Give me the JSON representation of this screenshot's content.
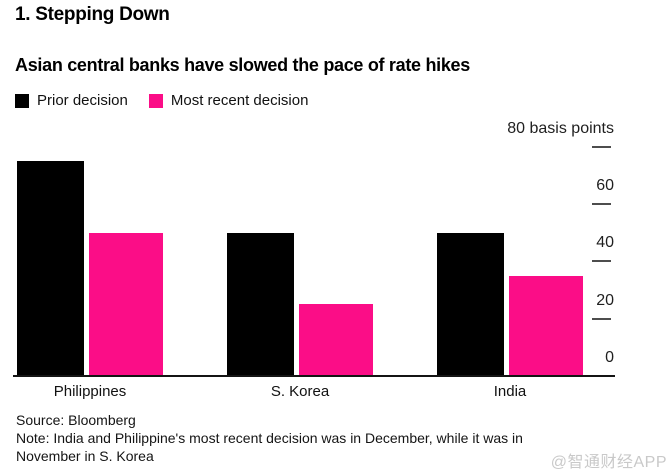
{
  "header": {
    "kicker": "1. Stepping Down",
    "title": "Asian central banks have slowed the pace of rate hikes"
  },
  "chart_data": {
    "type": "bar",
    "title": "Asian central banks have slowed the pace of rate hikes",
    "unit": "basis points",
    "categories": [
      "Philippines",
      "S. Korea",
      "India"
    ],
    "series": [
      {
        "name": "Prior decision",
        "color": "#000000",
        "values": [
          75,
          50,
          50
        ]
      },
      {
        "name": "Most recent decision",
        "color": "#fb0d87",
        "values": [
          50,
          25,
          35
        ]
      }
    ],
    "ylim": [
      0,
      80
    ],
    "yticks": [
      {
        "value": 80,
        "label": "80 basis points"
      },
      {
        "value": 60,
        "label": "60"
      },
      {
        "value": 40,
        "label": "40"
      },
      {
        "value": 20,
        "label": "20"
      },
      {
        "value": 0,
        "label": "0"
      }
    ],
    "value_axis_side": "right",
    "legend_position": "top-left",
    "grid": false
  },
  "footer": {
    "source": "Source: Bloomberg",
    "note_lines": [
      "Note: India and Philippine's most recent decision was in December, while it was in",
      "November in S. Korea"
    ],
    "watermark": "@智通财经APP"
  },
  "colors": {
    "bar_black": "#000000",
    "accent_pink": "#fb0d87",
    "tick_gray": "#4d4d4d",
    "axis_line": "#141414",
    "watermark_gray": "#c9c9c9"
  }
}
